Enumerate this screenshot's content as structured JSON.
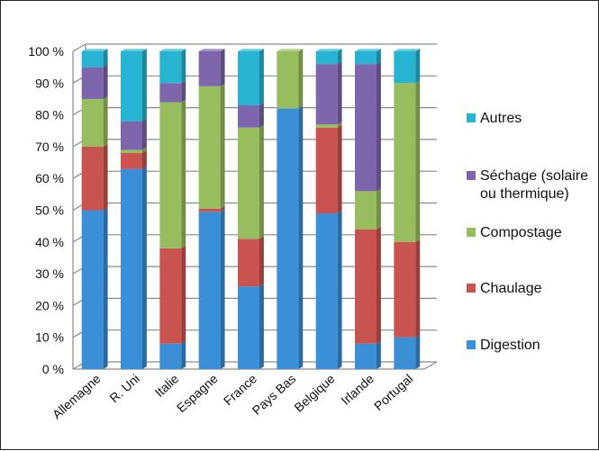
{
  "chart_data": {
    "type": "bar",
    "stacked": true,
    "percent": true,
    "three_d": true,
    "categories": [
      "Allemagne",
      "R. Uni",
      "Italie",
      "Espagne",
      "France",
      "Pays Bas",
      "Belgique",
      "Irlande",
      "Portugal"
    ],
    "series": [
      {
        "name": "Digestion",
        "color": "#3b8fd6",
        "values": [
          50,
          63,
          8,
          49.5,
          26,
          82,
          49,
          8,
          10
        ]
      },
      {
        "name": "Chaulage",
        "color": "#c9544f",
        "values": [
          20,
          5,
          30,
          1,
          15,
          0,
          27,
          36,
          30
        ]
      },
      {
        "name": "Compostage",
        "color": "#98bd5f",
        "values": [
          15,
          1,
          46,
          38.5,
          35,
          18,
          1,
          12,
          50
        ]
      },
      {
        "name": "Séchage (solaire ou thermique)",
        "color": "#7d66ab",
        "values": [
          10,
          9,
          6,
          11,
          7,
          0,
          19,
          40,
          0
        ]
      },
      {
        "name": "Autres",
        "color": "#26b4d2",
        "values": [
          5,
          22,
          10,
          0,
          17,
          0,
          4,
          4,
          10
        ]
      }
    ],
    "legend_order": [
      "Autres",
      "Séchage (solaire ou thermique)",
      "Compostage",
      "Chaulage",
      "Digestion"
    ],
    "legend_lines": {
      "Séchage (solaire ou thermique)": [
        "Séchage (solaire",
        "ou thermique)"
      ]
    },
    "y_ticks": [
      "0 %",
      "10 %",
      "20 %",
      "30 %",
      "40 %",
      "50 %",
      "60 %",
      "70 %",
      "80 %",
      "90 %",
      "100 %"
    ],
    "ylim": [
      0,
      100
    ],
    "grid": true,
    "legend_position": "right",
    "title": "",
    "xlabel": "",
    "ylabel": ""
  }
}
